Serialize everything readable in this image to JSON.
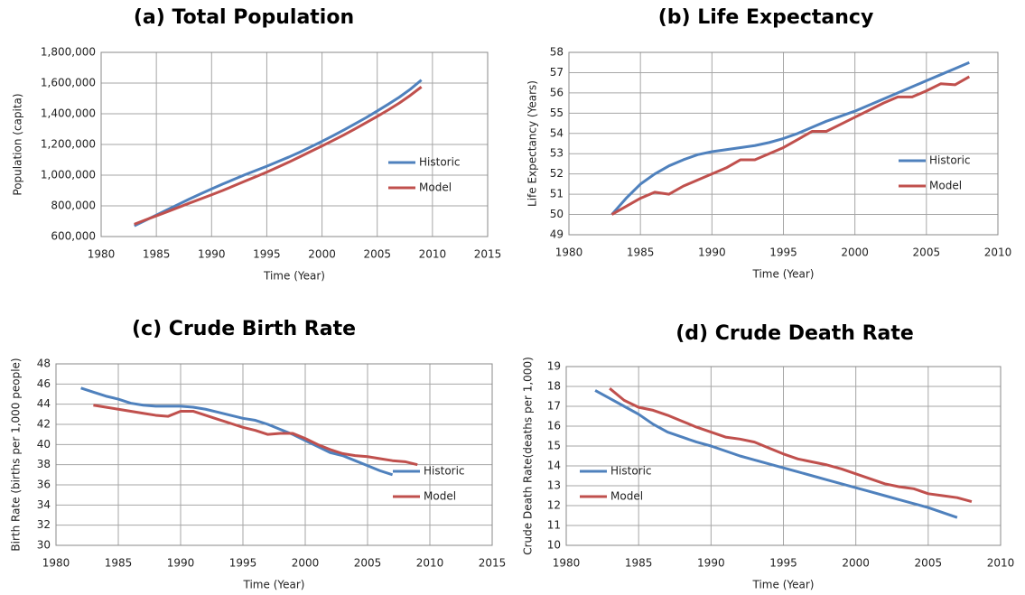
{
  "chart_data": [
    {
      "type": "line",
      "title": "(a) Total Population",
      "xlabel": "Time (Year)",
      "ylabel": "Population (capita)",
      "x": [
        1983,
        1984,
        1985,
        1986,
        1987,
        1988,
        1989,
        1990,
        1991,
        1992,
        1993,
        1994,
        1995,
        1996,
        1997,
        1998,
        1999,
        2000,
        2001,
        2002,
        2003,
        2004,
        2005,
        2006,
        2007,
        2008,
        2009
      ],
      "series": [
        {
          "name": "Historic",
          "color": "#4f81bd",
          "values": [
            670000,
            705000,
            740000,
            775000,
            810000,
            845000,
            878000,
            910000,
            942000,
            972000,
            1002000,
            1030000,
            1058000,
            1088000,
            1118000,
            1150000,
            1185000,
            1220000,
            1257000,
            1295000,
            1335000,
            1375000,
            1418000,
            1462000,
            1508000,
            1560000,
            1620000
          ]
        },
        {
          "name": "Model",
          "color": "#c0504d",
          "values": [
            680000,
            708000,
            735000,
            762000,
            790000,
            818000,
            845000,
            872000,
            900000,
            930000,
            960000,
            990000,
            1020000,
            1052000,
            1085000,
            1120000,
            1155000,
            1190000,
            1226000,
            1263000,
            1302000,
            1342000,
            1383000,
            1425000,
            1470000,
            1520000,
            1575000
          ]
        }
      ],
      "xlim": [
        1980,
        2015
      ],
      "xticks": [
        1980,
        1985,
        1990,
        1995,
        2000,
        2005,
        2010,
        2015
      ],
      "ylim": [
        600000,
        1800000
      ],
      "yticks": [
        {
          "value": 600000,
          "label": "600,000"
        },
        {
          "value": 800000,
          "label": "800,000"
        },
        {
          "value": 1000000,
          "label": "1,000,000"
        },
        {
          "value": 1200000,
          "label": "1,200,000"
        },
        {
          "value": 1400000,
          "label": "1,400,000"
        },
        {
          "value": 1600000,
          "label": "1,600,000"
        },
        {
          "value": 1800000,
          "label": "1,800,000"
        }
      ],
      "grid": true,
      "legend": "lower right"
    },
    {
      "type": "line",
      "title": "(b) Life Expectancy",
      "xlabel": "Time (Year)",
      "ylabel": "Life Expectancy (Years)",
      "x": [
        1983,
        1984,
        1985,
        1986,
        1987,
        1988,
        1989,
        1990,
        1991,
        1992,
        1993,
        1994,
        1995,
        1996,
        1997,
        1998,
        1999,
        2000,
        2001,
        2002,
        2003,
        2004,
        2005,
        2006,
        2007,
        2008
      ],
      "series": [
        {
          "name": "Historic",
          "color": "#4f81bd",
          "values": [
            50,
            50.8,
            51.5,
            52.0,
            52.4,
            52.7,
            52.95,
            53.1,
            53.2,
            53.3,
            53.4,
            53.55,
            53.75,
            54.0,
            54.3,
            54.6,
            54.85,
            55.1,
            55.4,
            55.7,
            56.0,
            56.3,
            56.6,
            56.9,
            57.2,
            57.5
          ]
        },
        {
          "name": "Model",
          "color": "#c0504d",
          "values": [
            50,
            50.4,
            50.8,
            51.1,
            51.0,
            51.4,
            51.7,
            52.0,
            52.3,
            52.7,
            52.7,
            53.0,
            53.3,
            53.7,
            54.1,
            54.1,
            54.45,
            54.8,
            55.15,
            55.5,
            55.8,
            55.8,
            56.1,
            56.45,
            56.4,
            56.8
          ]
        }
      ],
      "xlim": [
        1980,
        2010
      ],
      "xticks": [
        1980,
        1985,
        1990,
        1995,
        2000,
        2005,
        2010
      ],
      "ylim": [
        49,
        58
      ],
      "yticks": [
        49,
        50,
        51,
        52,
        53,
        54,
        55,
        56,
        57,
        58
      ],
      "grid": true,
      "legend": "lower right"
    },
    {
      "type": "line",
      "title": "(c) Crude Birth Rate",
      "xlabel": "Time (Year)",
      "ylabel": "Birth Rate (births per 1,000 people)",
      "x": [
        1982,
        1983,
        1984,
        1985,
        1986,
        1987,
        1988,
        1989,
        1990,
        1991,
        1992,
        1993,
        1994,
        1995,
        1996,
        1997,
        1998,
        1999,
        2000,
        2001,
        2002,
        2003,
        2004,
        2005,
        2006,
        2007,
        2008,
        2009
      ],
      "series": [
        {
          "name": "Historic",
          "color": "#4f81bd",
          "values": [
            45.6,
            45.2,
            44.8,
            44.5,
            44.1,
            43.9,
            43.8,
            43.8,
            43.8,
            43.7,
            43.5,
            43.2,
            42.9,
            42.6,
            42.4,
            42.0,
            41.5,
            41.0,
            40.4,
            39.8,
            39.2,
            38.9,
            38.4,
            37.9,
            37.4,
            37.0,
            null,
            null
          ]
        },
        {
          "name": "Model",
          "color": "#c0504d",
          "values": [
            null,
            43.9,
            43.7,
            43.5,
            43.3,
            43.1,
            42.9,
            42.8,
            43.3,
            43.3,
            42.9,
            42.5,
            42.1,
            41.7,
            41.4,
            41.0,
            41.1,
            41.1,
            40.6,
            40.0,
            39.5,
            39.1,
            38.9,
            38.8,
            38.6,
            38.4,
            38.3,
            38.0
          ]
        }
      ],
      "xlim": [
        1980,
        2015
      ],
      "xticks": [
        1980,
        1985,
        1990,
        1995,
        2000,
        2005,
        2010,
        2015
      ],
      "ylim": [
        30,
        48
      ],
      "yticks": [
        30,
        32,
        34,
        36,
        38,
        40,
        42,
        44,
        46,
        48
      ],
      "grid": true,
      "legend": "lower right"
    },
    {
      "type": "line",
      "title": "(d) Crude Death Rate",
      "xlabel": "Time (Year)",
      "ylabel": "Crude Death Rate(deaths per 1,000)",
      "x": [
        1982,
        1983,
        1984,
        1985,
        1986,
        1987,
        1988,
        1989,
        1990,
        1991,
        1992,
        1993,
        1994,
        1995,
        1996,
        1997,
        1998,
        1999,
        2000,
        2001,
        2002,
        2003,
        2004,
        2005,
        2006,
        2007,
        2008
      ],
      "series": [
        {
          "name": "Historic",
          "color": "#4f81bd",
          "values": [
            17.8,
            17.4,
            17.0,
            16.6,
            16.1,
            15.7,
            15.45,
            15.2,
            15.0,
            14.75,
            14.5,
            14.3,
            14.1,
            13.9,
            13.7,
            13.5,
            13.3,
            13.1,
            12.9,
            12.7,
            12.5,
            12.3,
            12.1,
            11.9,
            11.65,
            11.4,
            null
          ]
        },
        {
          "name": "Model",
          "color": "#c0504d",
          "values": [
            null,
            17.9,
            17.3,
            16.95,
            16.8,
            16.55,
            16.25,
            15.95,
            15.7,
            15.45,
            15.35,
            15.2,
            14.9,
            14.6,
            14.35,
            14.2,
            14.05,
            13.85,
            13.6,
            13.35,
            13.1,
            12.95,
            12.85,
            12.6,
            12.5,
            12.4,
            12.2
          ]
        }
      ],
      "xlim": [
        1980,
        2010
      ],
      "xticks": [
        1980,
        1985,
        1990,
        1995,
        2000,
        2005,
        2010
      ],
      "ylim": [
        10,
        19
      ],
      "yticks": [
        10,
        11,
        12,
        13,
        14,
        15,
        16,
        17,
        18,
        19
      ],
      "grid": true,
      "legend": "lower left"
    }
  ]
}
